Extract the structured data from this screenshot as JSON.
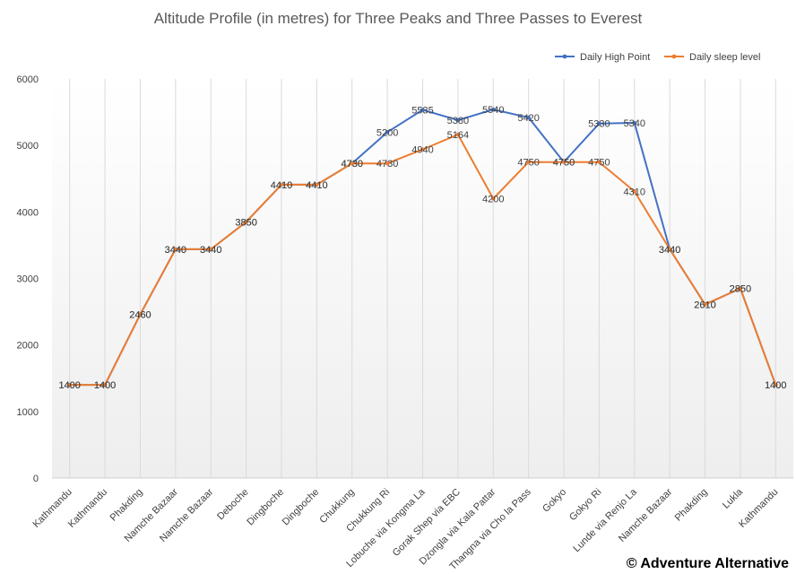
{
  "chart_data": {
    "type": "line",
    "title": "Altitude Profile (in metres) for Three Peaks and Three Passes to Everest",
    "xlabel": "",
    "ylabel": "",
    "ylim": [
      0,
      6000
    ],
    "yticks": [
      0,
      1000,
      2000,
      3000,
      4000,
      5000,
      6000
    ],
    "categories": [
      "Kathmandu",
      "Kathmandu",
      "Phakding",
      "Namche Bazaar",
      "Namche Bazaar",
      "Deboche",
      "Dingboche",
      "Dingboche",
      "Chukkung",
      "Chukkung Ri",
      "Lobuche via Kongma La",
      "Gorak Shep via EBC",
      "Dzongla via Kala Pattar",
      "Thangna via Cho la Pass",
      "Gokyo",
      "Gokyo Ri",
      "Lunde via Renjo La",
      "Namche Bazaar",
      "Phakding",
      "Lukla",
      "Kathmandu"
    ],
    "legend_position": "top-right",
    "series": [
      {
        "name": "Daily High Point",
        "color": "#4472C4",
        "values": [
          1400,
          1400,
          2460,
          3440,
          3440,
          3850,
          4410,
          4410,
          4730,
          5200,
          5535,
          5380,
          5540,
          5420,
          4750,
          5330,
          5340,
          3440,
          2610,
          2850,
          1400
        ],
        "labels": [
          "1400",
          "1400",
          "2460",
          "3440",
          "3440",
          "3850",
          "4410",
          "4410",
          "4730",
          "5200",
          "5535",
          "5380",
          "5540",
          "5420",
          "4750",
          "5330",
          "5340",
          "3440",
          "2610",
          "2850",
          "1400"
        ]
      },
      {
        "name": "Daily sleep level",
        "color": "#ED7D31",
        "values": [
          1400,
          1400,
          2460,
          3440,
          3440,
          3850,
          4410,
          4410,
          4730,
          4730,
          4940,
          5164,
          4200,
          4750,
          4750,
          4750,
          4310,
          3440,
          2610,
          2850,
          1400
        ],
        "labels": [
          "1400",
          "1400",
          "2460",
          "3440",
          "3440",
          "3850",
          "4410",
          "4410",
          "4730",
          "4730",
          "4940",
          "5164",
          "4200",
          "4750",
          "4750",
          "4750",
          "4310",
          "3440",
          "2610",
          "2850",
          "1400"
        ]
      }
    ]
  },
  "copyright": "© Adventure Alternative"
}
